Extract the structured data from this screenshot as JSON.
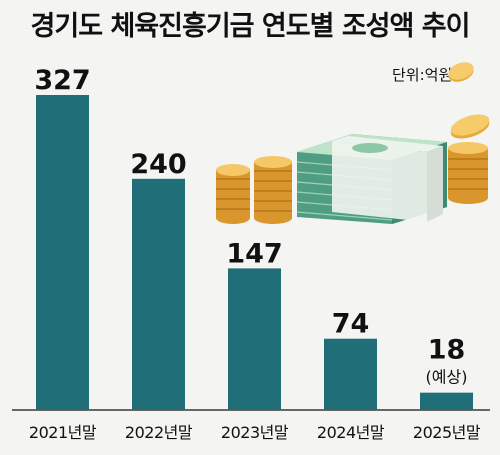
{
  "chart_data": {
    "type": "bar",
    "title": "경기도 체육진흥기금 연도별 조성액 추이",
    "unit_label": "단위:억원",
    "categories": [
      "2021년말",
      "2022년말",
      "2023년말",
      "2024년말",
      "2025년말"
    ],
    "values": [
      327,
      240,
      147,
      74,
      18
    ],
    "value_labels": [
      "327",
      "240",
      "147",
      "74",
      "18"
    ],
    "notes": [
      "",
      "",
      "",
      "",
      "(예상)"
    ],
    "ylim": [
      0,
      327
    ],
    "grid": false,
    "bar_color": "#1f6e78"
  },
  "illustration": {
    "icon": "money-stack-and-coins-icon"
  }
}
